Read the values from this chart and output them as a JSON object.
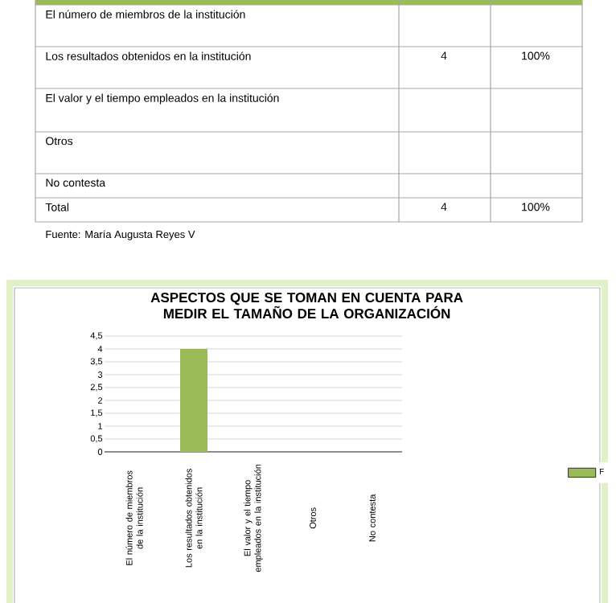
{
  "chart_data": {
    "type": "bar",
    "title": "ASPECTOS QUE SE TOMAN EN CUENTA PARA MEDIR EL TAMAÑO DE LA ORGANIZACIÓN",
    "categories": [
      "El número de miembros de la institución",
      "Los resultados obtenidos en la institución",
      "El valor y el tiempo empleados en la institución",
      "Otros",
      "No contesta"
    ],
    "series": [
      {
        "name": "F",
        "color": "#9bbb59",
        "values": [
          0,
          4,
          0,
          0,
          0
        ]
      }
    ],
    "ylim": [
      0,
      4.5
    ],
    "yticks": [
      0,
      {
        "value": 0.5,
        "label": "0,5"
      },
      1,
      {
        "value": 1.5,
        "label": "1,5"
      },
      2,
      {
        "value": 2.5,
        "label": "2,5"
      },
      3,
      {
        "value": 3.5,
        "label": "3,5"
      },
      4,
      {
        "value": 4.5,
        "label": "4,5"
      }
    ],
    "grid": "y",
    "legend": "right",
    "annotations": [
      "El número de miembros de la institución",
      "Los resultados obtenidos en la institución",
      "4",
      "100%",
      "El valor y el tiempo empleados en la institución",
      "Otros",
      "No contesta",
      "Total",
      "4",
      "100%",
      "Fuente: María Augusta Reyes V"
    ]
  }
}
